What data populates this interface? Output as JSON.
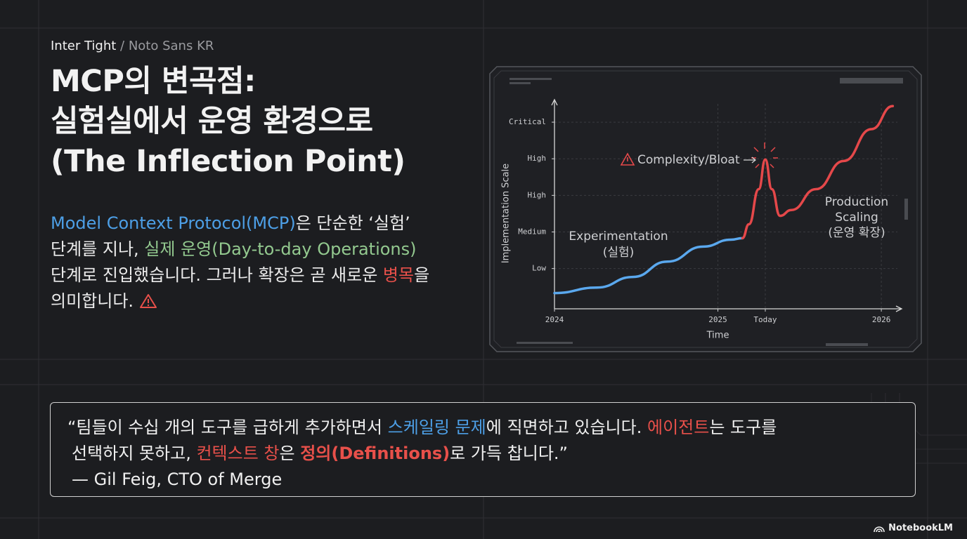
{
  "font_label": {
    "main": "Inter Tight",
    "sub": "/ Noto Sans KR"
  },
  "title": [
    "MCP의 변곡점:",
    "실험실에서 운영 환경으로",
    "(The Inflection Point)"
  ],
  "body": {
    "lines": [
      [
        {
          "text": "Model Context Protocol(MCP)",
          "color": "#4d9fe6"
        },
        {
          "text": "은 단순한 ‘실험’"
        }
      ],
      [
        {
          "text": "단계를 지나, "
        },
        {
          "text": "실제 운영(Day-to-day Operations)",
          "color": "#93c98f"
        }
      ],
      [
        {
          "text": "단계로 진입했습니다. 그러나 확장은 곧 새로운 "
        },
        {
          "text": "병목",
          "color": "#e8504a"
        },
        {
          "text": "을"
        }
      ],
      [
        {
          "text": "의미합니다."
        }
      ]
    ]
  },
  "chart_data": {
    "type": "line",
    "ylabel": "Implementation Scale",
    "xlabel": "Time",
    "xlim": [
      2024,
      2026.12
    ],
    "xticks": [
      2024,
      2025,
      {
        "value": 2025.29,
        "label": "Today"
      },
      2026
    ],
    "ylim": [
      -0.1,
      5.5
    ],
    "yticks": [
      {
        "value": 1,
        "label": "Low"
      },
      {
        "value": 2,
        "label": "Medium"
      },
      {
        "value": 3,
        "label": "High"
      },
      {
        "value": 4,
        "label": "High"
      },
      {
        "value": 5,
        "label": "Critical"
      }
    ],
    "grid": true,
    "series": [
      {
        "color": "#5aa8ee",
        "x": [
          2024,
          2024.26,
          2024.48,
          2024.69,
          2024.91,
          2025.08,
          2025.15
        ],
        "values": [
          0.33,
          0.48,
          0.77,
          1.19,
          1.6,
          1.79,
          1.83
        ]
      },
      {
        "color": "#e5484a",
        "x": [
          2025.15,
          2025.19,
          2025.25,
          2025.29,
          2025.33,
          2025.38,
          2025.45,
          2025.6,
          2025.77,
          2025.94,
          2026.07
        ],
        "values": [
          1.83,
          2.21,
          3.17,
          3.98,
          3.17,
          2.44,
          2.6,
          3.17,
          3.94,
          4.81,
          5.44
        ]
      }
    ],
    "annotations": [
      "Experimentation",
      "(실험)",
      "Complexity/Bloat",
      "Production",
      "Scaling",
      "(운영 확장)"
    ]
  },
  "quote": {
    "lines": [
      [
        {
          "text": "“팀들이 수십 개의 도구를 급하게 추가하면서 "
        },
        {
          "text": "스케일링 문제",
          "color": "#4d9fe6"
        },
        {
          "text": "에 직면하고 있습니다. "
        },
        {
          "text": "에이전트",
          "color": "#e8504a"
        },
        {
          "text": "는 도구를"
        }
      ],
      [
        {
          "text": "선택하지 못하고, "
        },
        {
          "text": "컨텍스트 창",
          "color": "#e8504a"
        },
        {
          "text": "은 "
        },
        {
          "text": "정의(Definitions)",
          "color": "#e8504a",
          "bold": true
        },
        {
          "text": "로 가득 찹니다.”"
        }
      ]
    ],
    "attribution": "— Gil Feig, CTO of Merge"
  },
  "footer": "NotebookLM"
}
